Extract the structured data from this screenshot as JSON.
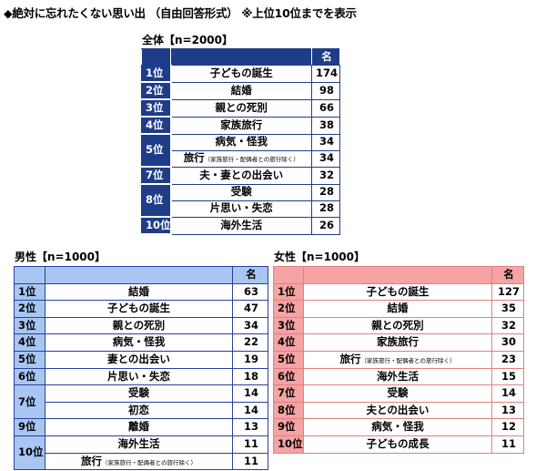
{
  "title": "◆絶対に忘れたくない思い出 （自由回答形式） ※上位10位までを表示",
  "colors": {
    "all": "#1f3c88",
    "men": "#a9c6f2",
    "women": "#f5a3a3"
  },
  "tables": {
    "all": {
      "caption": "全体【n=2000】",
      "count_header": "名",
      "groups": [
        {
          "rank": "1位",
          "items": [
            {
              "label": "子どもの誕生",
              "count": "174"
            }
          ]
        },
        {
          "rank": "2位",
          "items": [
            {
              "label": "結婚",
              "count": "98"
            }
          ]
        },
        {
          "rank": "3位",
          "items": [
            {
              "label": "親との死別",
              "count": "66"
            }
          ]
        },
        {
          "rank": "4位",
          "items": [
            {
              "label": "家族旅行",
              "count": "38"
            }
          ]
        },
        {
          "rank": "5位",
          "items": [
            {
              "label": "病気・怪我",
              "count": "34"
            },
            {
              "label": "旅行",
              "note": "（家族旅行・配偶者との旅行除く）",
              "count": "34"
            }
          ]
        },
        {
          "rank": "7位",
          "items": [
            {
              "label": "夫・妻との出会い",
              "count": "32"
            }
          ]
        },
        {
          "rank": "8位",
          "items": [
            {
              "label": "受験",
              "count": "28"
            },
            {
              "label": "片思い・失恋",
              "count": "28"
            }
          ]
        },
        {
          "rank": "10位",
          "items": [
            {
              "label": "海外生活",
              "count": "26"
            }
          ]
        }
      ]
    },
    "men": {
      "caption": "男性【n=1000】",
      "count_header": "名",
      "groups": [
        {
          "rank": "1位",
          "items": [
            {
              "label": "結婚",
              "count": "63"
            }
          ]
        },
        {
          "rank": "2位",
          "items": [
            {
              "label": "子どもの誕生",
              "count": "47"
            }
          ]
        },
        {
          "rank": "3位",
          "items": [
            {
              "label": "親との死別",
              "count": "34"
            }
          ]
        },
        {
          "rank": "4位",
          "items": [
            {
              "label": "病気・怪我",
              "count": "22"
            }
          ]
        },
        {
          "rank": "5位",
          "items": [
            {
              "label": "妻との出会い",
              "count": "19"
            }
          ]
        },
        {
          "rank": "6位",
          "items": [
            {
              "label": "片思い・失恋",
              "count": "18"
            }
          ]
        },
        {
          "rank": "7位",
          "items": [
            {
              "label": "受験",
              "count": "14"
            },
            {
              "label": "初恋",
              "count": "14"
            }
          ]
        },
        {
          "rank": "9位",
          "items": [
            {
              "label": "離婚",
              "count": "13"
            }
          ]
        },
        {
          "rank": "10位",
          "items": [
            {
              "label": "海外生活",
              "count": "11"
            },
            {
              "label": "旅行",
              "note": "（家族旅行・配偶者との旅行除く）",
              "count": "11"
            }
          ]
        }
      ]
    },
    "women": {
      "caption": "女性【n=1000】",
      "count_header": "名",
      "groups": [
        {
          "rank": "1位",
          "items": [
            {
              "label": "子どもの誕生",
              "count": "127"
            }
          ]
        },
        {
          "rank": "2位",
          "items": [
            {
              "label": "結婚",
              "count": "35"
            }
          ]
        },
        {
          "rank": "3位",
          "items": [
            {
              "label": "親との死別",
              "count": "32"
            }
          ]
        },
        {
          "rank": "4位",
          "items": [
            {
              "label": "家族旅行",
              "count": "30"
            }
          ]
        },
        {
          "rank": "5位",
          "items": [
            {
              "label": "旅行",
              "note": "（家族旅行・配偶者との旅行除く）",
              "count": "23"
            }
          ]
        },
        {
          "rank": "6位",
          "items": [
            {
              "label": "海外生活",
              "count": "15"
            }
          ]
        },
        {
          "rank": "7位",
          "items": [
            {
              "label": "受験",
              "count": "14"
            }
          ]
        },
        {
          "rank": "8位",
          "items": [
            {
              "label": "夫との出会い",
              "count": "13"
            }
          ]
        },
        {
          "rank": "9位",
          "items": [
            {
              "label": "病気・怪我",
              "count": "12"
            }
          ]
        },
        {
          "rank": "10位",
          "items": [
            {
              "label": "子どもの成長",
              "count": "11"
            }
          ]
        }
      ]
    }
  }
}
